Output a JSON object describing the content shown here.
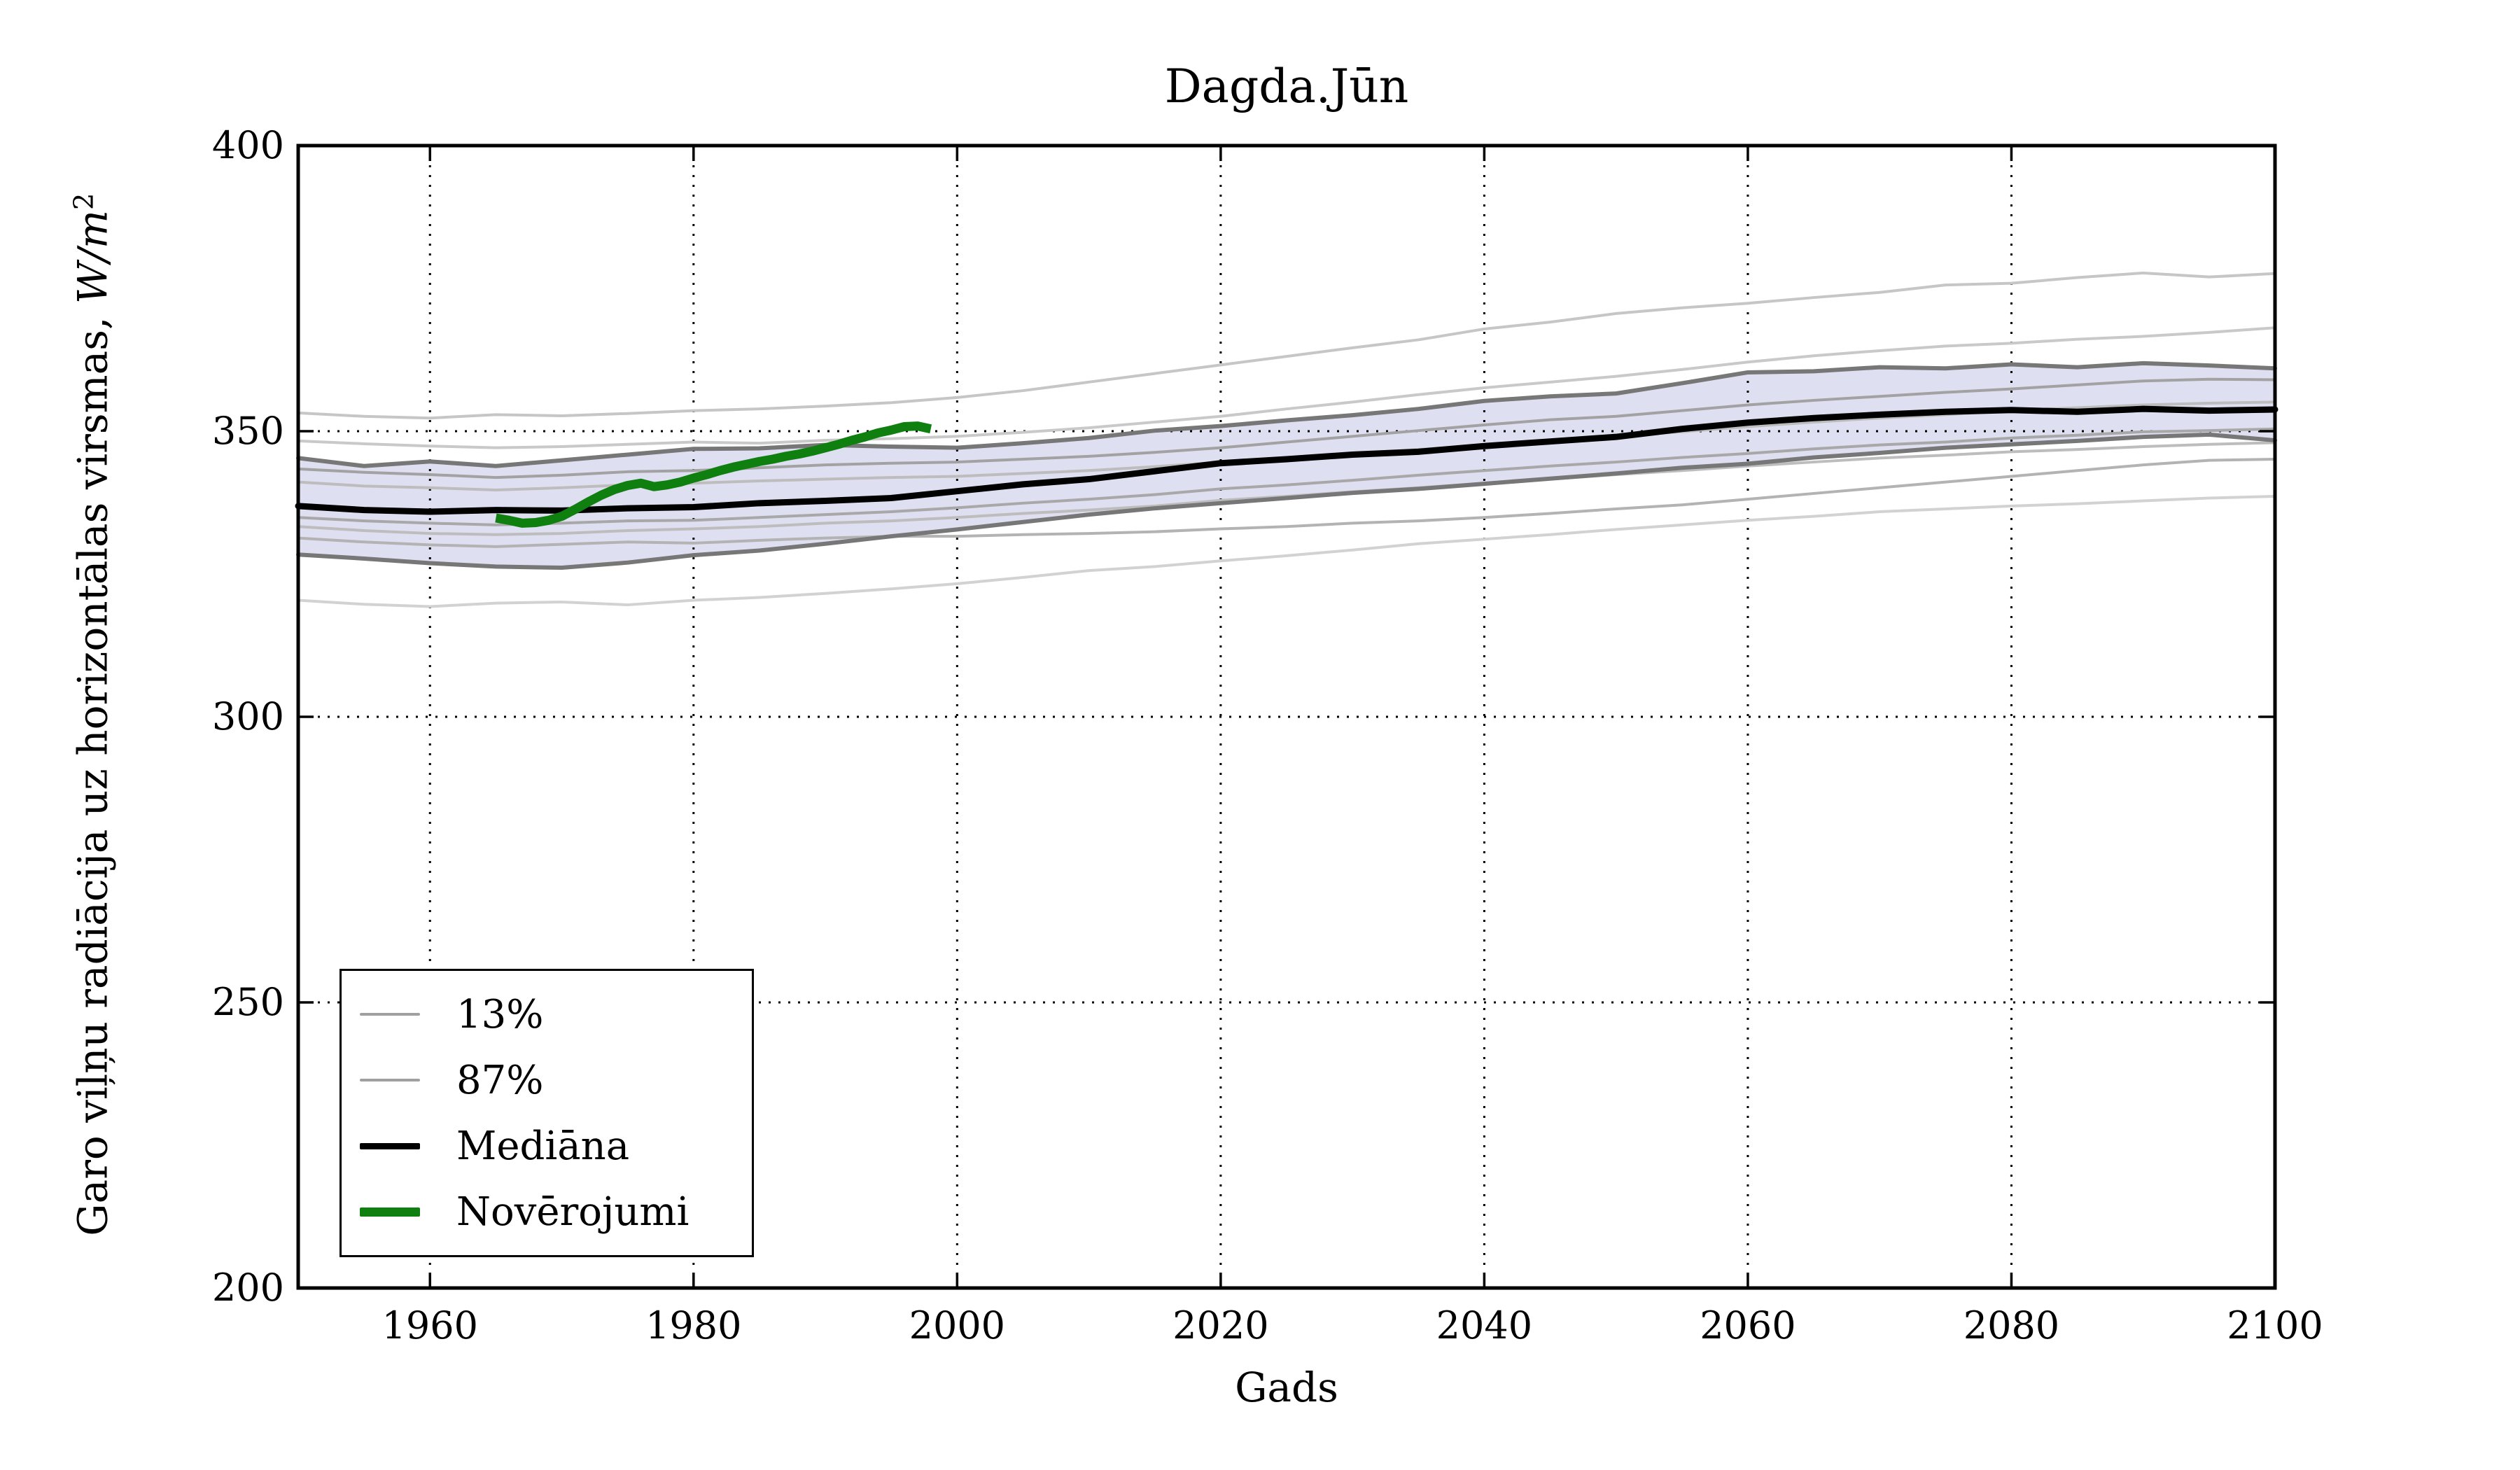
{
  "title": "Dagda.Jūn",
  "xlabel": "Gads",
  "ylabel": {
    "text": "Garo viļņu radiācija uz horizontālas virsmas, ",
    "unit": "W/m",
    "exponent": "2"
  },
  "legend": {
    "items": [
      {
        "label": "13%",
        "color": "#a0a0a0",
        "thickness": 4
      },
      {
        "label": "87%",
        "color": "#a0a0a0",
        "thickness": 4
      },
      {
        "label": "Mediāna",
        "color": "#000000",
        "thickness": 9
      },
      {
        "label": "Novērojumi",
        "color": "#0f7f0f",
        "thickness": 13
      }
    ]
  },
  "colors": {
    "band_fill": "#dfdff2",
    "band_edge": "#777777",
    "median": "#000000",
    "observations": "#0f7f0f",
    "grid": "#000000",
    "spine": "#000000"
  },
  "chart_data": {
    "type": "line",
    "title": "Dagda.Jūn",
    "xlabel": "Gads",
    "ylabel": "Garo viļņu radiācija uz horizontālas virsmas, W/m^2",
    "xlim": [
      1950,
      2100
    ],
    "ylim": [
      200,
      400
    ],
    "xticks": [
      1960,
      1980,
      2000,
      2020,
      2040,
      2060,
      2080,
      2100
    ],
    "yticks": [
      200,
      250,
      300,
      350,
      400
    ],
    "grid": "dotted",
    "legend_position": "lower-left",
    "years": [
      1950,
      1955,
      1960,
      1965,
      1970,
      1975,
      1980,
      1985,
      1990,
      1995,
      2000,
      2005,
      2010,
      2015,
      2020,
      2025,
      2030,
      2035,
      2040,
      2045,
      2050,
      2055,
      2060,
      2065,
      2070,
      2075,
      2080,
      2085,
      2090,
      2095,
      2100
    ],
    "band": {
      "name": "13-87-percentile-envelope",
      "upper": [
        345.3,
        343.9,
        344.7,
        343.9,
        344.9,
        345.9,
        346.9,
        347.0,
        347.6,
        347.3,
        347.1,
        347.9,
        348.8,
        350.1,
        350.9,
        351.9,
        352.8,
        353.9,
        355.3,
        356.1,
        356.6,
        358.4,
        360.3,
        360.5,
        361.2,
        361.0,
        361.7,
        361.2,
        361.9,
        361.5,
        361.0
      ],
      "lower": [
        328.4,
        327.7,
        326.9,
        326.3,
        326.1,
        327.0,
        328.3,
        329.1,
        330.3,
        331.6,
        332.8,
        334.1,
        335.4,
        336.5,
        337.4,
        338.3,
        339.2,
        339.9,
        340.8,
        341.7,
        342.6,
        343.6,
        344.3,
        345.4,
        346.2,
        347.1,
        347.7,
        348.3,
        349.0,
        349.4,
        348.4
      ]
    },
    "series": [
      {
        "name": "percentile-line-1",
        "group": "87%",
        "color": "#d2d2d2",
        "width": 4,
        "values": [
          320.4,
          319.7,
          319.3,
          319.9,
          320.1,
          319.6,
          320.4,
          320.9,
          321.6,
          322.4,
          323.3,
          324.4,
          325.6,
          326.3,
          327.3,
          328.2,
          329.2,
          330.3,
          331.1,
          331.9,
          332.8,
          333.6,
          334.4,
          335.1,
          335.9,
          336.4,
          336.9,
          337.3,
          337.8,
          338.3,
          338.6
        ]
      },
      {
        "name": "percentile-line-2",
        "group": "13%",
        "color": "#c6c6c6",
        "width": 4,
        "values": [
          353.2,
          352.6,
          352.3,
          352.9,
          352.7,
          353.1,
          353.6,
          353.9,
          354.4,
          355.0,
          355.9,
          357.1,
          358.6,
          360.1,
          361.6,
          363.1,
          364.6,
          366.0,
          367.9,
          369.1,
          370.6,
          371.6,
          372.4,
          373.4,
          374.3,
          375.6,
          375.9,
          376.9,
          377.7,
          377.0,
          377.6
        ]
      },
      {
        "name": "percentile-line-3",
        "group": "13%",
        "color": "#c9c9c9",
        "width": 4,
        "values": [
          348.3,
          347.8,
          347.4,
          347.1,
          347.3,
          347.7,
          348.1,
          347.9,
          348.4,
          348.7,
          349.1,
          349.8,
          350.6,
          351.6,
          352.6,
          353.9,
          355.1,
          356.4,
          357.6,
          358.6,
          359.6,
          360.8,
          362.1,
          363.2,
          364.1,
          364.9,
          365.4,
          366.1,
          366.6,
          367.3,
          368.1
        ]
      },
      {
        "name": "percentile-line-4",
        "group": "13%",
        "color": "#bdbdbd",
        "width": 4,
        "values": [
          341.1,
          340.4,
          340.1,
          339.7,
          340.1,
          340.6,
          340.9,
          341.3,
          341.6,
          341.9,
          342.1,
          342.6,
          343.1,
          343.8,
          344.6,
          345.3,
          346.1,
          346.8,
          347.6,
          348.3,
          349.1,
          349.9,
          350.8,
          351.6,
          352.3,
          352.9,
          353.6,
          354.1,
          354.6,
          354.9,
          355.1
        ]
      },
      {
        "name": "percentile-line-5",
        "group": "87%",
        "color": "#bdbdbd",
        "width": 4,
        "values": [
          333.3,
          332.6,
          332.1,
          331.9,
          332.1,
          332.6,
          332.9,
          333.3,
          333.9,
          334.3,
          334.9,
          335.6,
          336.2,
          336.9,
          337.9,
          338.6,
          339.4,
          340.1,
          340.9,
          341.6,
          342.4,
          343.1,
          343.9,
          344.6,
          345.3,
          345.8,
          346.4,
          346.8,
          347.3,
          347.7,
          348.0
        ]
      },
      {
        "name": "percentile-line-6",
        "group": "87%",
        "color": "#b3b3b3",
        "width": 4,
        "values": [
          331.3,
          330.6,
          330.1,
          329.8,
          330.2,
          330.6,
          330.4,
          330.9,
          331.3,
          331.6,
          331.6,
          331.9,
          332.1,
          332.4,
          332.9,
          333.3,
          333.9,
          334.3,
          334.9,
          335.6,
          336.4,
          337.1,
          338.1,
          339.1,
          340.1,
          341.1,
          342.1,
          343.1,
          344.1,
          344.9,
          345.1
        ]
      },
      {
        "name": "percentile-line-7",
        "group": "13%",
        "color": "#a2a2a2",
        "width": 4,
        "values": [
          343.4,
          342.8,
          342.4,
          341.9,
          342.3,
          342.9,
          343.1,
          343.6,
          344.1,
          344.4,
          344.6,
          345.1,
          345.6,
          346.3,
          347.1,
          348.1,
          349.1,
          350.1,
          351.1,
          352.0,
          352.6,
          353.6,
          354.6,
          355.4,
          356.1,
          356.8,
          357.4,
          358.1,
          358.8,
          359.1,
          359.0
        ]
      },
      {
        "name": "percentile-line-8",
        "group": "87%",
        "color": "#a8a8a8",
        "width": 4,
        "values": [
          334.9,
          334.3,
          333.9,
          333.6,
          333.9,
          334.3,
          334.4,
          334.9,
          335.4,
          335.9,
          336.6,
          337.4,
          338.1,
          338.9,
          339.9,
          340.6,
          341.4,
          342.3,
          343.1,
          343.9,
          344.6,
          345.4,
          346.1,
          346.9,
          347.6,
          348.1,
          348.8,
          349.3,
          349.9,
          350.1,
          350.4
        ]
      }
    ],
    "median": {
      "name": "Mediāna",
      "color": "#000000",
      "width": 9,
      "values": [
        336.9,
        336.2,
        335.9,
        336.2,
        336.1,
        336.5,
        336.7,
        337.4,
        337.8,
        338.3,
        339.5,
        340.7,
        341.6,
        343.0,
        344.4,
        345.1,
        345.9,
        346.4,
        347.4,
        348.2,
        349.0,
        350.4,
        351.5,
        352.3,
        352.9,
        353.4,
        353.7,
        353.4,
        353.9,
        353.6,
        353.8
      ]
    },
    "observations": {
      "name": "Novērojumi",
      "color": "#0f7f0f",
      "width": 13,
      "x": [
        1965,
        1966,
        1967,
        1968,
        1969,
        1970,
        1971,
        1972,
        1973,
        1974,
        1975,
        1976,
        1977,
        1978,
        1979,
        1980,
        1981,
        1982,
        1983,
        1984,
        1985,
        1986,
        1987,
        1988,
        1989,
        1990,
        1991,
        1992,
        1993,
        1994,
        1995,
        1996,
        1997,
        1998
      ],
      "values": [
        334.8,
        334.4,
        333.9,
        334.0,
        334.4,
        335.1,
        336.3,
        337.6,
        338.8,
        339.8,
        340.5,
        340.9,
        340.3,
        340.6,
        341.1,
        341.8,
        342.4,
        343.1,
        343.7,
        344.2,
        344.7,
        345.1,
        345.6,
        346.0,
        346.5,
        347.1,
        347.7,
        348.4,
        349.0,
        349.7,
        350.2,
        350.8,
        350.9,
        350.4
      ]
    }
  }
}
